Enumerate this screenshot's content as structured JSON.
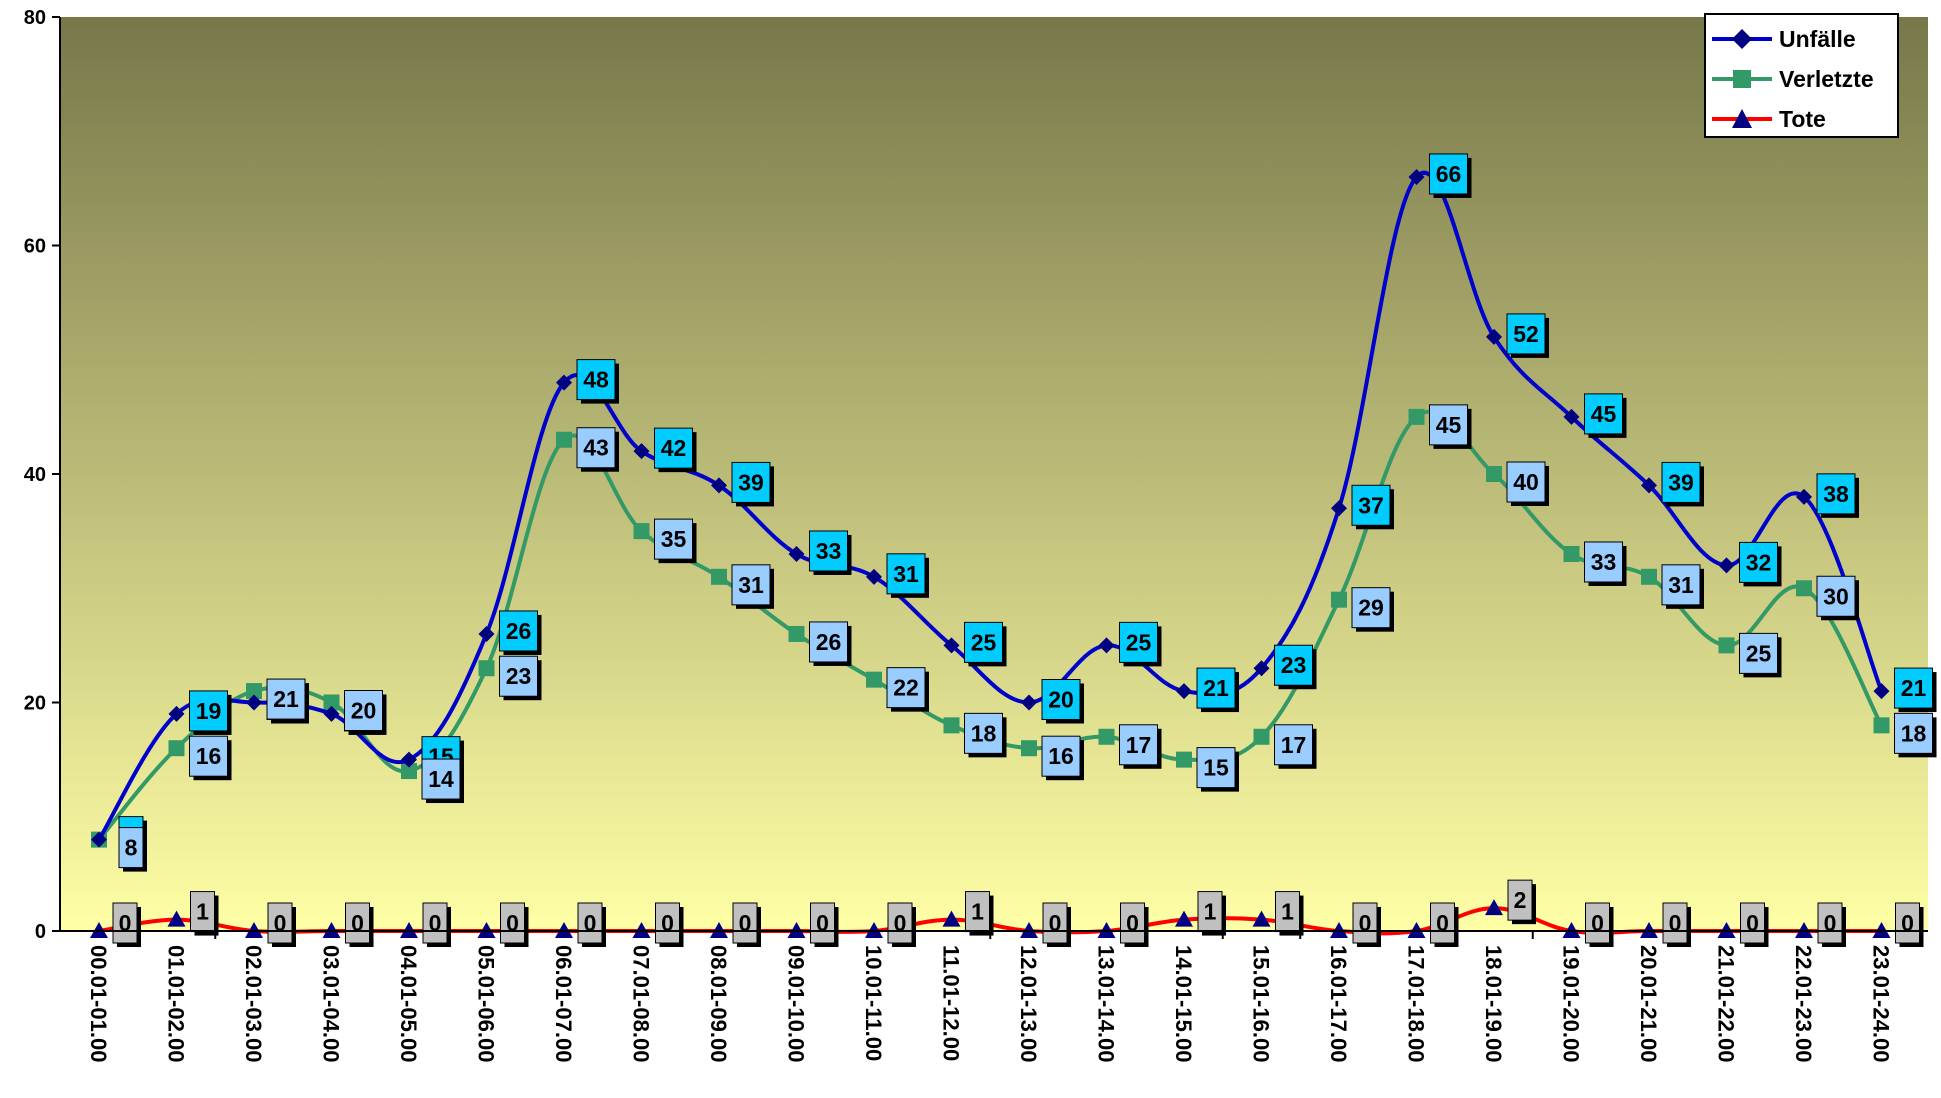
{
  "chart_data": {
    "type": "line",
    "categories": [
      "00.01-01.00",
      "01.01-02.00",
      "02.01-03.00",
      "03.01-04.00",
      "04.01-05.00",
      "05.01-06.00",
      "06.01-07.00",
      "07.01-08.00",
      "08.01-09.00",
      "09.01-10.00",
      "10.01-11.00",
      "11.01-12.00",
      "12.01-13.00",
      "13.01-14.00",
      "14.01-15.00",
      "15.01-16.00",
      "16.01-17.00",
      "17.01-18.00",
      "18.01-19.00",
      "19.01-20.00",
      "20.01-21.00",
      "21.01-22.00",
      "22.01-23.00",
      "23.01-24.00"
    ],
    "yticks": [
      "0",
      "20",
      "40",
      "60",
      "80"
    ],
    "ylim": [
      0,
      80
    ],
    "grid": false,
    "legend_position": "top-right",
    "series": [
      {
        "name": "Unfälle",
        "color": "#0000cc",
        "marker": "diamond",
        "marker_color": "#000080",
        "label_bg": "#00ccff",
        "values": [
          8,
          19,
          20,
          19,
          15,
          26,
          48,
          42,
          39,
          33,
          31,
          25,
          20,
          25,
          21,
          23,
          37,
          66,
          52,
          45,
          39,
          32,
          38,
          21
        ]
      },
      {
        "name": "Verletzte",
        "color": "#339966",
        "marker": "square",
        "marker_color": "#339966",
        "label_bg": "#99ccff",
        "values": [
          8,
          16,
          21,
          20,
          14,
          23,
          43,
          35,
          31,
          26,
          22,
          18,
          16,
          17,
          15,
          17,
          29,
          45,
          40,
          33,
          31,
          25,
          30,
          18
        ]
      },
      {
        "name": "Tote",
        "color": "#ff0000",
        "marker": "triangle",
        "marker_color": "#000080",
        "label_bg": "#c0c0c0",
        "values": [
          0,
          1,
          0,
          0,
          0,
          0,
          0,
          0,
          0,
          0,
          0,
          1,
          0,
          0,
          1,
          1,
          0,
          0,
          2,
          0,
          0,
          0,
          0,
          0
        ]
      }
    ]
  },
  "colors": {
    "background_top": "#77774a",
    "background_bottom": "#ffffa6",
    "axis": "#000000"
  }
}
